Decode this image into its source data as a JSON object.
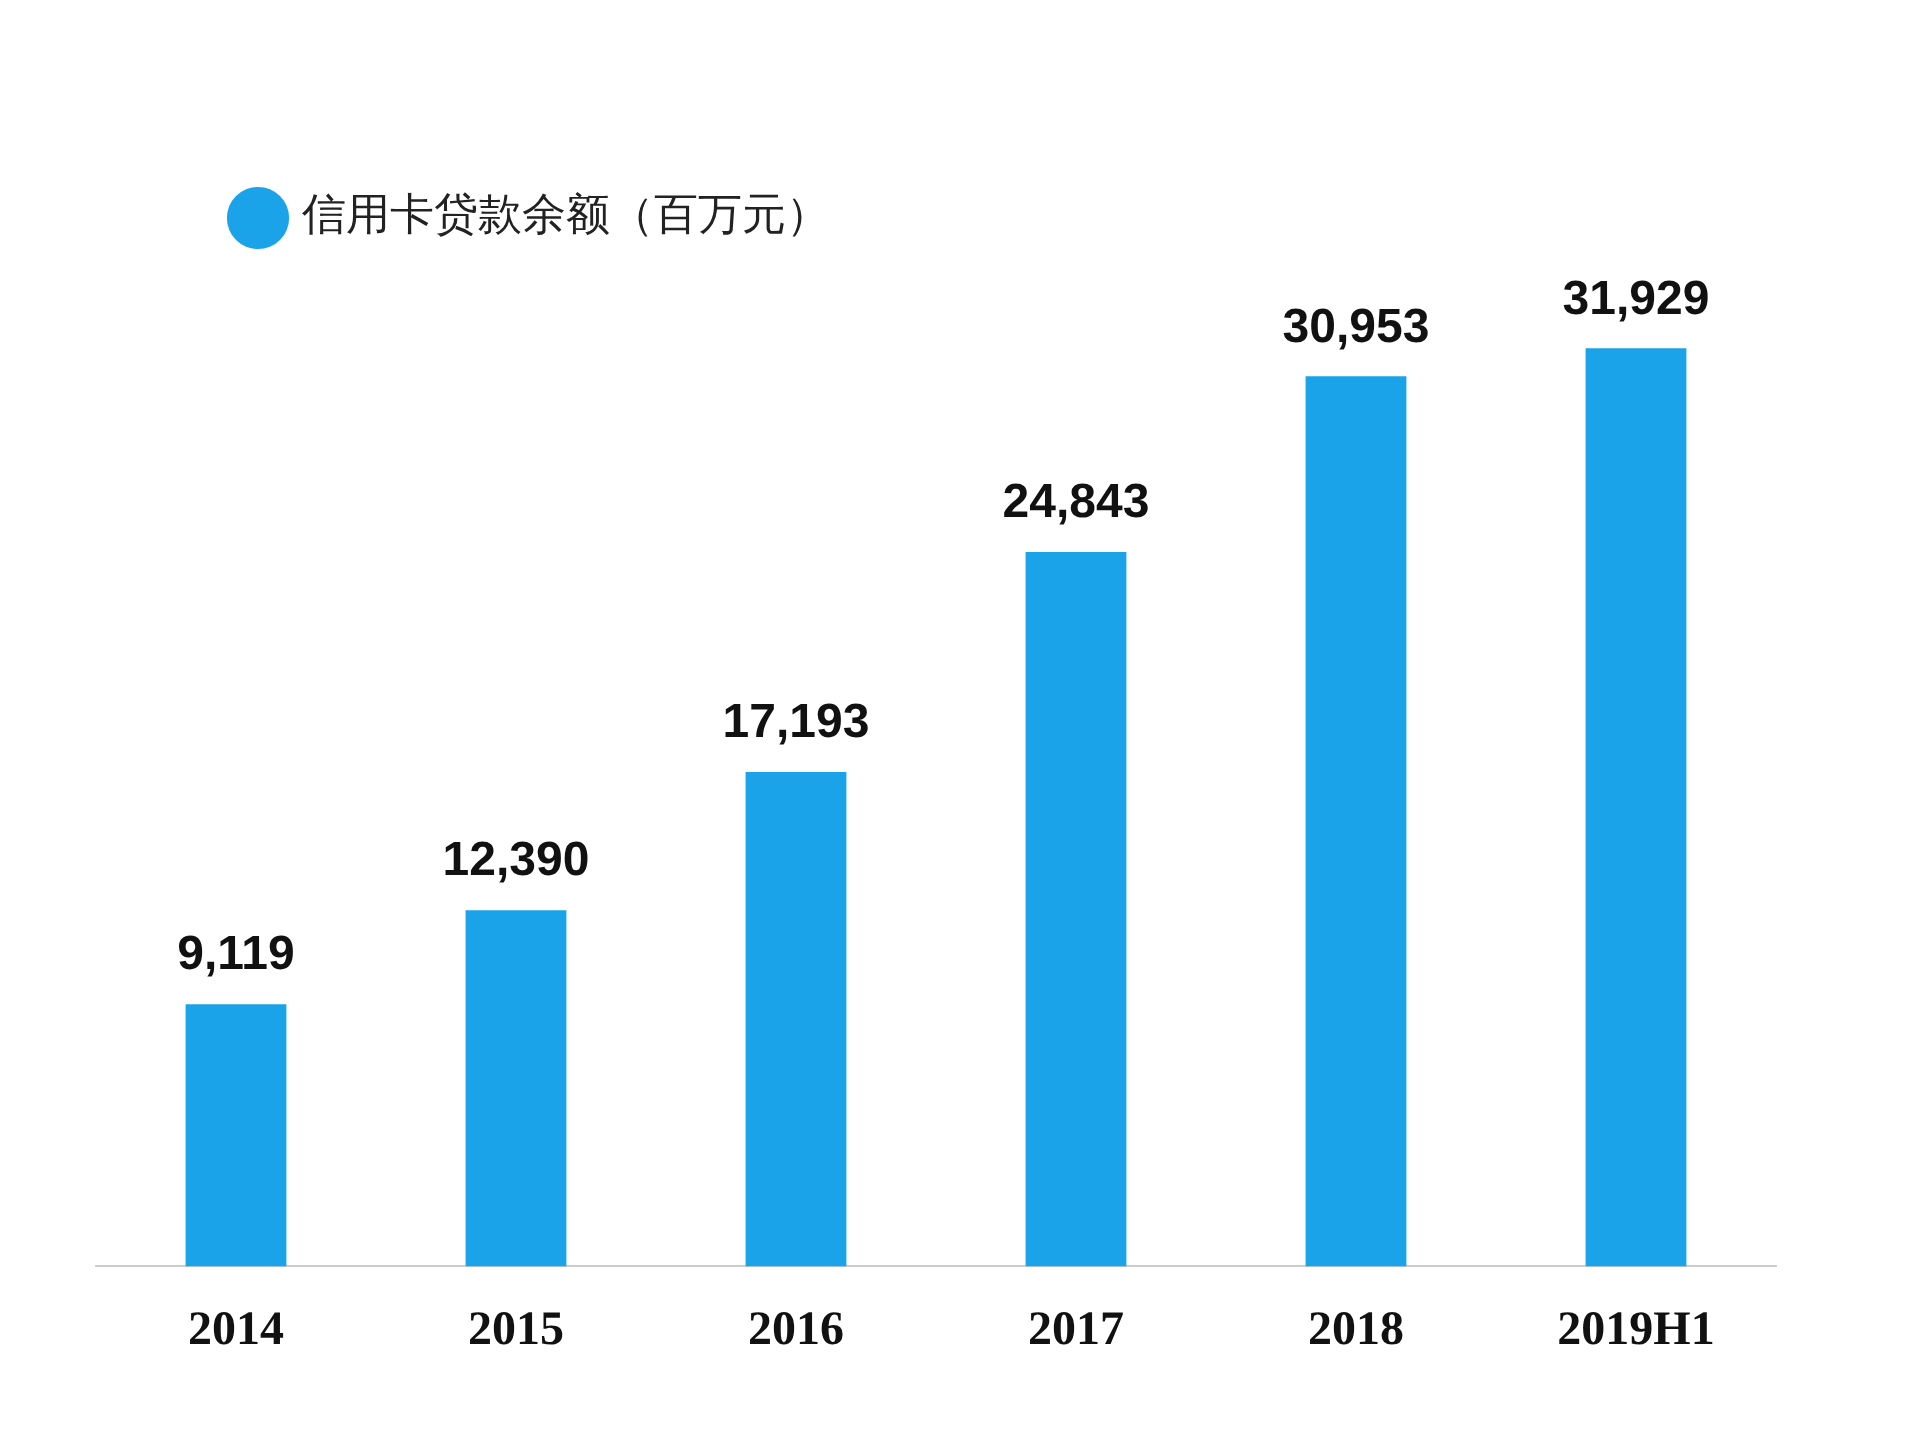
{
  "chart_data": {
    "type": "bar",
    "categories": [
      "2014",
      "2015",
      "2016",
      "2017",
      "2018",
      "2019H1"
    ],
    "series": [
      {
        "name": "信用卡贷款余额（百万元）",
        "color": "#1aa3e8",
        "values": [
          9119,
          12390,
          17193,
          24843,
          30953,
          31929
        ],
        "value_labels": [
          "9,119",
          "12,390",
          "17,193",
          "24,843",
          "30,953",
          "31,929"
        ]
      }
    ],
    "legend": "top left",
    "grid": false,
    "tick_labels": "x"
  }
}
